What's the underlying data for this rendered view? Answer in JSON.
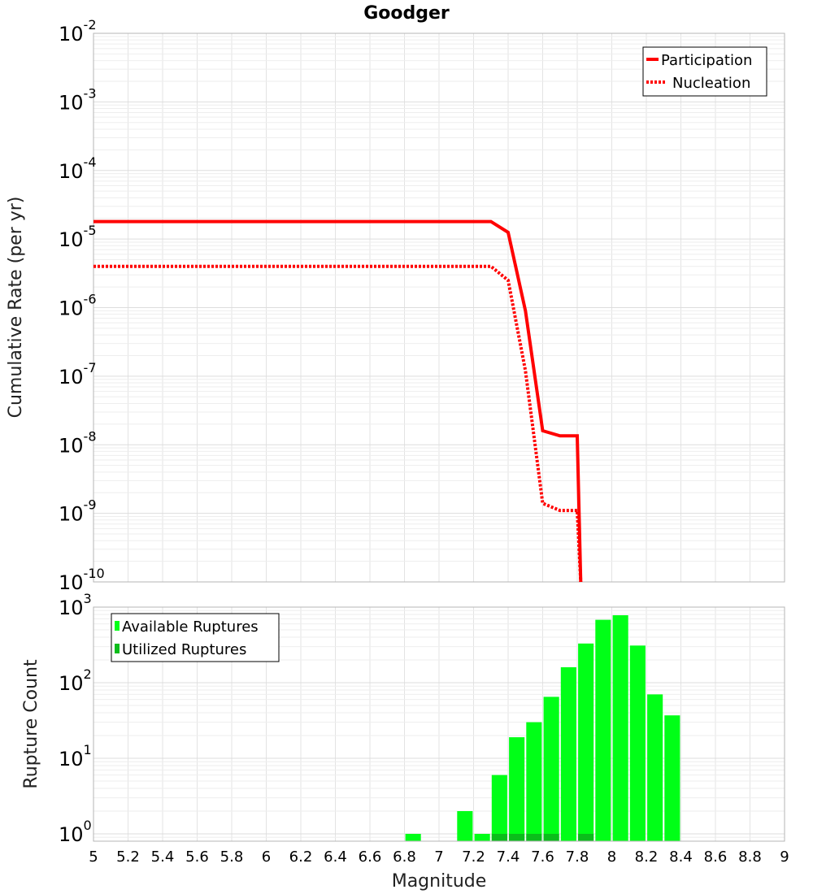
{
  "chart_data": [
    {
      "type": "line",
      "title": "Goodger",
      "ylabel": "Cumulative Rate (per yr)",
      "xlim": [
        5,
        9
      ],
      "ylim": [
        1e-10,
        0.01
      ],
      "yscale": "log",
      "ytick_exponents": [
        "-2",
        "-3",
        "-4",
        "-5",
        "-6",
        "-7",
        "-8",
        "-9",
        "-10"
      ],
      "ytick_base": "10",
      "legend_position": "top-right",
      "series": [
        {
          "name": "Participation",
          "color": "#ff0000",
          "style": "solid",
          "x": [
            5.0,
            7.3,
            7.4,
            7.5,
            7.6,
            7.7,
            7.8,
            7.82
          ],
          "y": [
            1.8e-05,
            1.8e-05,
            1.25e-05,
            9e-07,
            1.6e-08,
            1.35e-08,
            1.35e-08,
            1e-10
          ]
        },
        {
          "name": "Nucleation",
          "color": "#ff0000",
          "style": "dotted",
          "x": [
            5.0,
            7.3,
            7.4,
            7.5,
            7.6,
            7.7,
            7.8,
            7.82
          ],
          "y": [
            4e-06,
            4e-06,
            2.5e-06,
            1.2e-07,
            1.4e-09,
            1.1e-09,
            1.1e-09,
            1e-10
          ]
        }
      ]
    },
    {
      "type": "bar",
      "xlabel": "Magnitude",
      "ylabel": "Rupture Count",
      "xlim": [
        5,
        9
      ],
      "ylim": [
        0.8,
        1000
      ],
      "yscale": "log",
      "ytick_exponents": [
        "3",
        "2",
        "1",
        "0"
      ],
      "ytick_base": "10",
      "xticks": [
        "5",
        "5.2",
        "5.4",
        "5.6",
        "5.8",
        "6",
        "6.2",
        "6.4",
        "6.6",
        "6.8",
        "7",
        "7.2",
        "7.4",
        "7.6",
        "7.8",
        "8",
        "8.2",
        "8.4",
        "8.6",
        "8.8",
        "9"
      ],
      "legend_position": "top-left",
      "series": [
        {
          "name": "Available Ruptures",
          "color": "#00ff17",
          "x": [
            6.85,
            7.15,
            7.25,
            7.35,
            7.45,
            7.55,
            7.65,
            7.75,
            7.85,
            7.95,
            8.05,
            8.15,
            8.25,
            8.35
          ],
          "values": [
            1,
            2,
            1,
            6,
            19,
            30,
            65,
            160,
            330,
            680,
            780,
            310,
            70,
            37
          ]
        },
        {
          "name": "Utilized Ruptures",
          "color": "#0bbd1b",
          "x": [
            7.35,
            7.45,
            7.55,
            7.65,
            7.85
          ],
          "values": [
            1,
            1,
            1,
            1,
            1
          ]
        }
      ]
    }
  ]
}
